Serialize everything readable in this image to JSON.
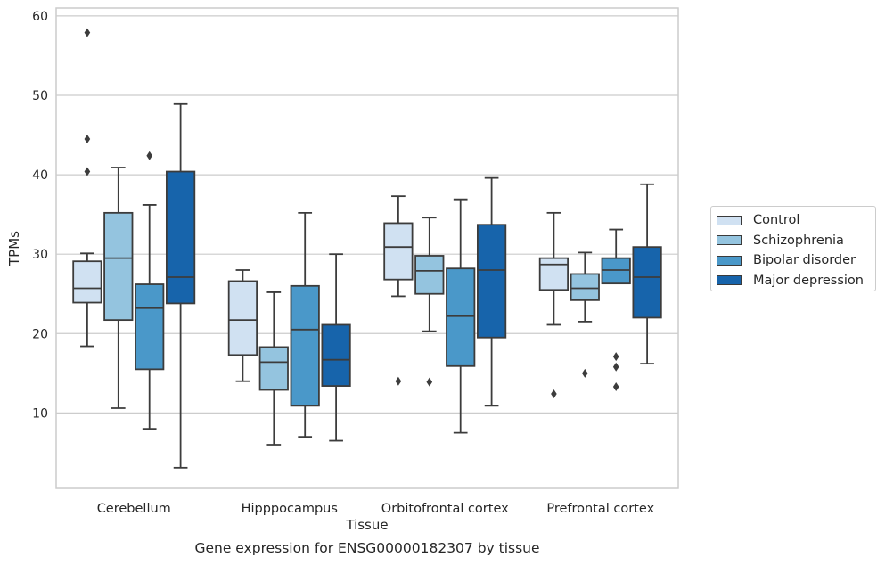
{
  "chart_data": {
    "type": "box",
    "title": "",
    "caption": "Gene expression for ENSG00000182307 by tissue",
    "xlabel": "Tissue",
    "ylabel": "TPMs",
    "ylim": [
      0.5,
      61
    ],
    "yticks": [
      10,
      20,
      30,
      40,
      50,
      60
    ],
    "grid": true,
    "legend_position": "right",
    "categories": [
      "Cerebellum",
      "Hipppocampus",
      "Orbitofrontal cortex",
      "Prefrontal cortex"
    ],
    "series": [
      {
        "name": "Control",
        "color": "#d0e1f2",
        "boxes": [
          {
            "whisker_low": 18.4,
            "q1": 23.9,
            "median": 25.7,
            "q3": 29.1,
            "whisker_high": 30.1,
            "outliers": [
              40.4,
              44.5,
              57.9
            ]
          },
          {
            "whisker_low": 14.0,
            "q1": 17.3,
            "median": 21.7,
            "q3": 26.6,
            "whisker_high": 28.0,
            "outliers": []
          },
          {
            "whisker_low": 24.7,
            "q1": 26.8,
            "median": 30.9,
            "q3": 33.9,
            "whisker_high": 37.3,
            "outliers": [
              14.0
            ]
          },
          {
            "whisker_low": 21.1,
            "q1": 25.5,
            "median": 28.7,
            "q3": 29.5,
            "whisker_high": 35.2,
            "outliers": [
              12.4
            ]
          }
        ]
      },
      {
        "name": "Schizophrenia",
        "color": "#94c4df",
        "boxes": [
          {
            "whisker_low": 10.6,
            "q1": 21.7,
            "median": 29.5,
            "q3": 35.2,
            "whisker_high": 40.9,
            "outliers": []
          },
          {
            "whisker_low": 6.0,
            "q1": 12.9,
            "median": 16.4,
            "q3": 18.3,
            "whisker_high": 25.2,
            "outliers": []
          },
          {
            "whisker_low": 20.3,
            "q1": 25.0,
            "median": 27.9,
            "q3": 29.8,
            "whisker_high": 34.6,
            "outliers": [
              13.9
            ]
          },
          {
            "whisker_low": 21.5,
            "q1": 24.2,
            "median": 25.7,
            "q3": 27.5,
            "whisker_high": 30.2,
            "outliers": [
              15.0
            ]
          }
        ]
      },
      {
        "name": "Bipolar disorder",
        "color": "#4a98c9",
        "boxes": [
          {
            "whisker_low": 8.0,
            "q1": 15.5,
            "median": 23.2,
            "q3": 26.2,
            "whisker_high": 36.2,
            "outliers": [
              42.4
            ]
          },
          {
            "whisker_low": 7.0,
            "q1": 10.9,
            "median": 20.5,
            "q3": 26.0,
            "whisker_high": 35.2,
            "outliers": []
          },
          {
            "whisker_low": 7.5,
            "q1": 15.9,
            "median": 22.2,
            "q3": 28.2,
            "whisker_high": 36.9,
            "outliers": []
          },
          {
            "whisker_low": 26.3,
            "q1": 26.3,
            "median": 28.0,
            "q3": 29.5,
            "whisker_high": 33.1,
            "outliers": [
              13.3,
              15.8,
              17.1
            ]
          }
        ]
      },
      {
        "name": "Major depression",
        "color": "#1764ab",
        "boxes": [
          {
            "whisker_low": 3.1,
            "q1": 23.8,
            "median": 27.1,
            "q3": 40.4,
            "whisker_high": 48.9,
            "outliers": []
          },
          {
            "whisker_low": 6.5,
            "q1": 13.4,
            "median": 16.7,
            "q3": 21.1,
            "whisker_high": 30.0,
            "outliers": []
          },
          {
            "whisker_low": 10.9,
            "q1": 19.5,
            "median": 28.0,
            "q3": 33.7,
            "whisker_high": 39.6,
            "outliers": []
          },
          {
            "whisker_low": 16.2,
            "q1": 22.0,
            "median": 27.1,
            "q3": 30.9,
            "whisker_high": 38.8,
            "outliers": []
          }
        ]
      }
    ]
  }
}
